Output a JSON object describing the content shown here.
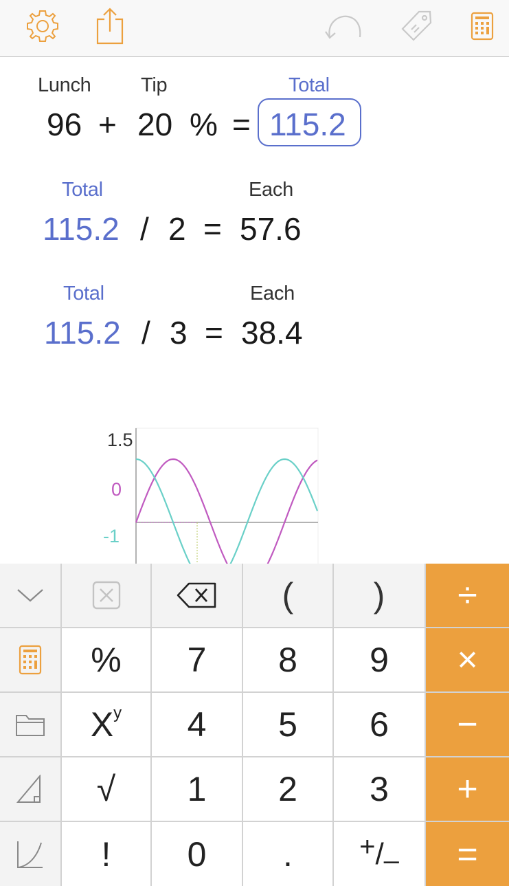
{
  "toolbar": {
    "icons": [
      "gear-icon",
      "share-icon",
      "undo-icon",
      "tag-icon",
      "calculator-icon"
    ],
    "accent": "#eca03e",
    "disabled": "#c9c9c9"
  },
  "calc": {
    "line1": {
      "label_a": "Lunch",
      "label_b": "Tip",
      "label_result": "Total",
      "a": "96",
      "op1": "+",
      "b": "20",
      "op2": "%",
      "eq": "=",
      "result": "115.2"
    },
    "line2": {
      "label_a": "Total",
      "label_result": "Each",
      "a": "115.2",
      "op": "/",
      "b": "2",
      "eq": "=",
      "result": "57.6"
    },
    "line3": {
      "label_a": "Total",
      "label_result": "Each",
      "a": "115.2",
      "op": "/",
      "b": "3",
      "eq": "=",
      "result": "38.4"
    },
    "colors": {
      "variable": "#5a6fcc",
      "text": "#1a1a1a"
    }
  },
  "chart_data": {
    "type": "line",
    "y_tick_labels": [
      "1.5",
      "0",
      "-1"
    ],
    "series": [
      {
        "color": "#c05ac0"
      },
      {
        "color": "#6ad0c8"
      }
    ],
    "xlim": [
      0,
      7.7
    ],
    "ylim": [
      -1,
      1.5
    ]
  },
  "keypad": {
    "top_row": [
      "chevron-down-icon",
      "clear-icon",
      "backspace-icon",
      "(",
      ")",
      "÷"
    ],
    "rows": [
      {
        "side": "calculator-icon",
        "func": "%",
        "keys": [
          "7",
          "8",
          "9"
        ],
        "op": "×"
      },
      {
        "side": "folder-icon",
        "func": "Xʸ",
        "keys": [
          "4",
          "5",
          "6"
        ],
        "op": "−"
      },
      {
        "side": "triangle-icon",
        "func": "√",
        "keys": [
          "1",
          "2",
          "3"
        ],
        "op": "+"
      },
      {
        "side": "curve-icon",
        "func": "!",
        "keys": [
          "0",
          ".",
          "⁺∕₋"
        ],
        "op": "="
      }
    ],
    "func_xy_base": "X",
    "func_xy_exp": "y",
    "plus_minus_plus": "+",
    "plus_minus_minus": "–",
    "op_color": "#eca03e"
  }
}
